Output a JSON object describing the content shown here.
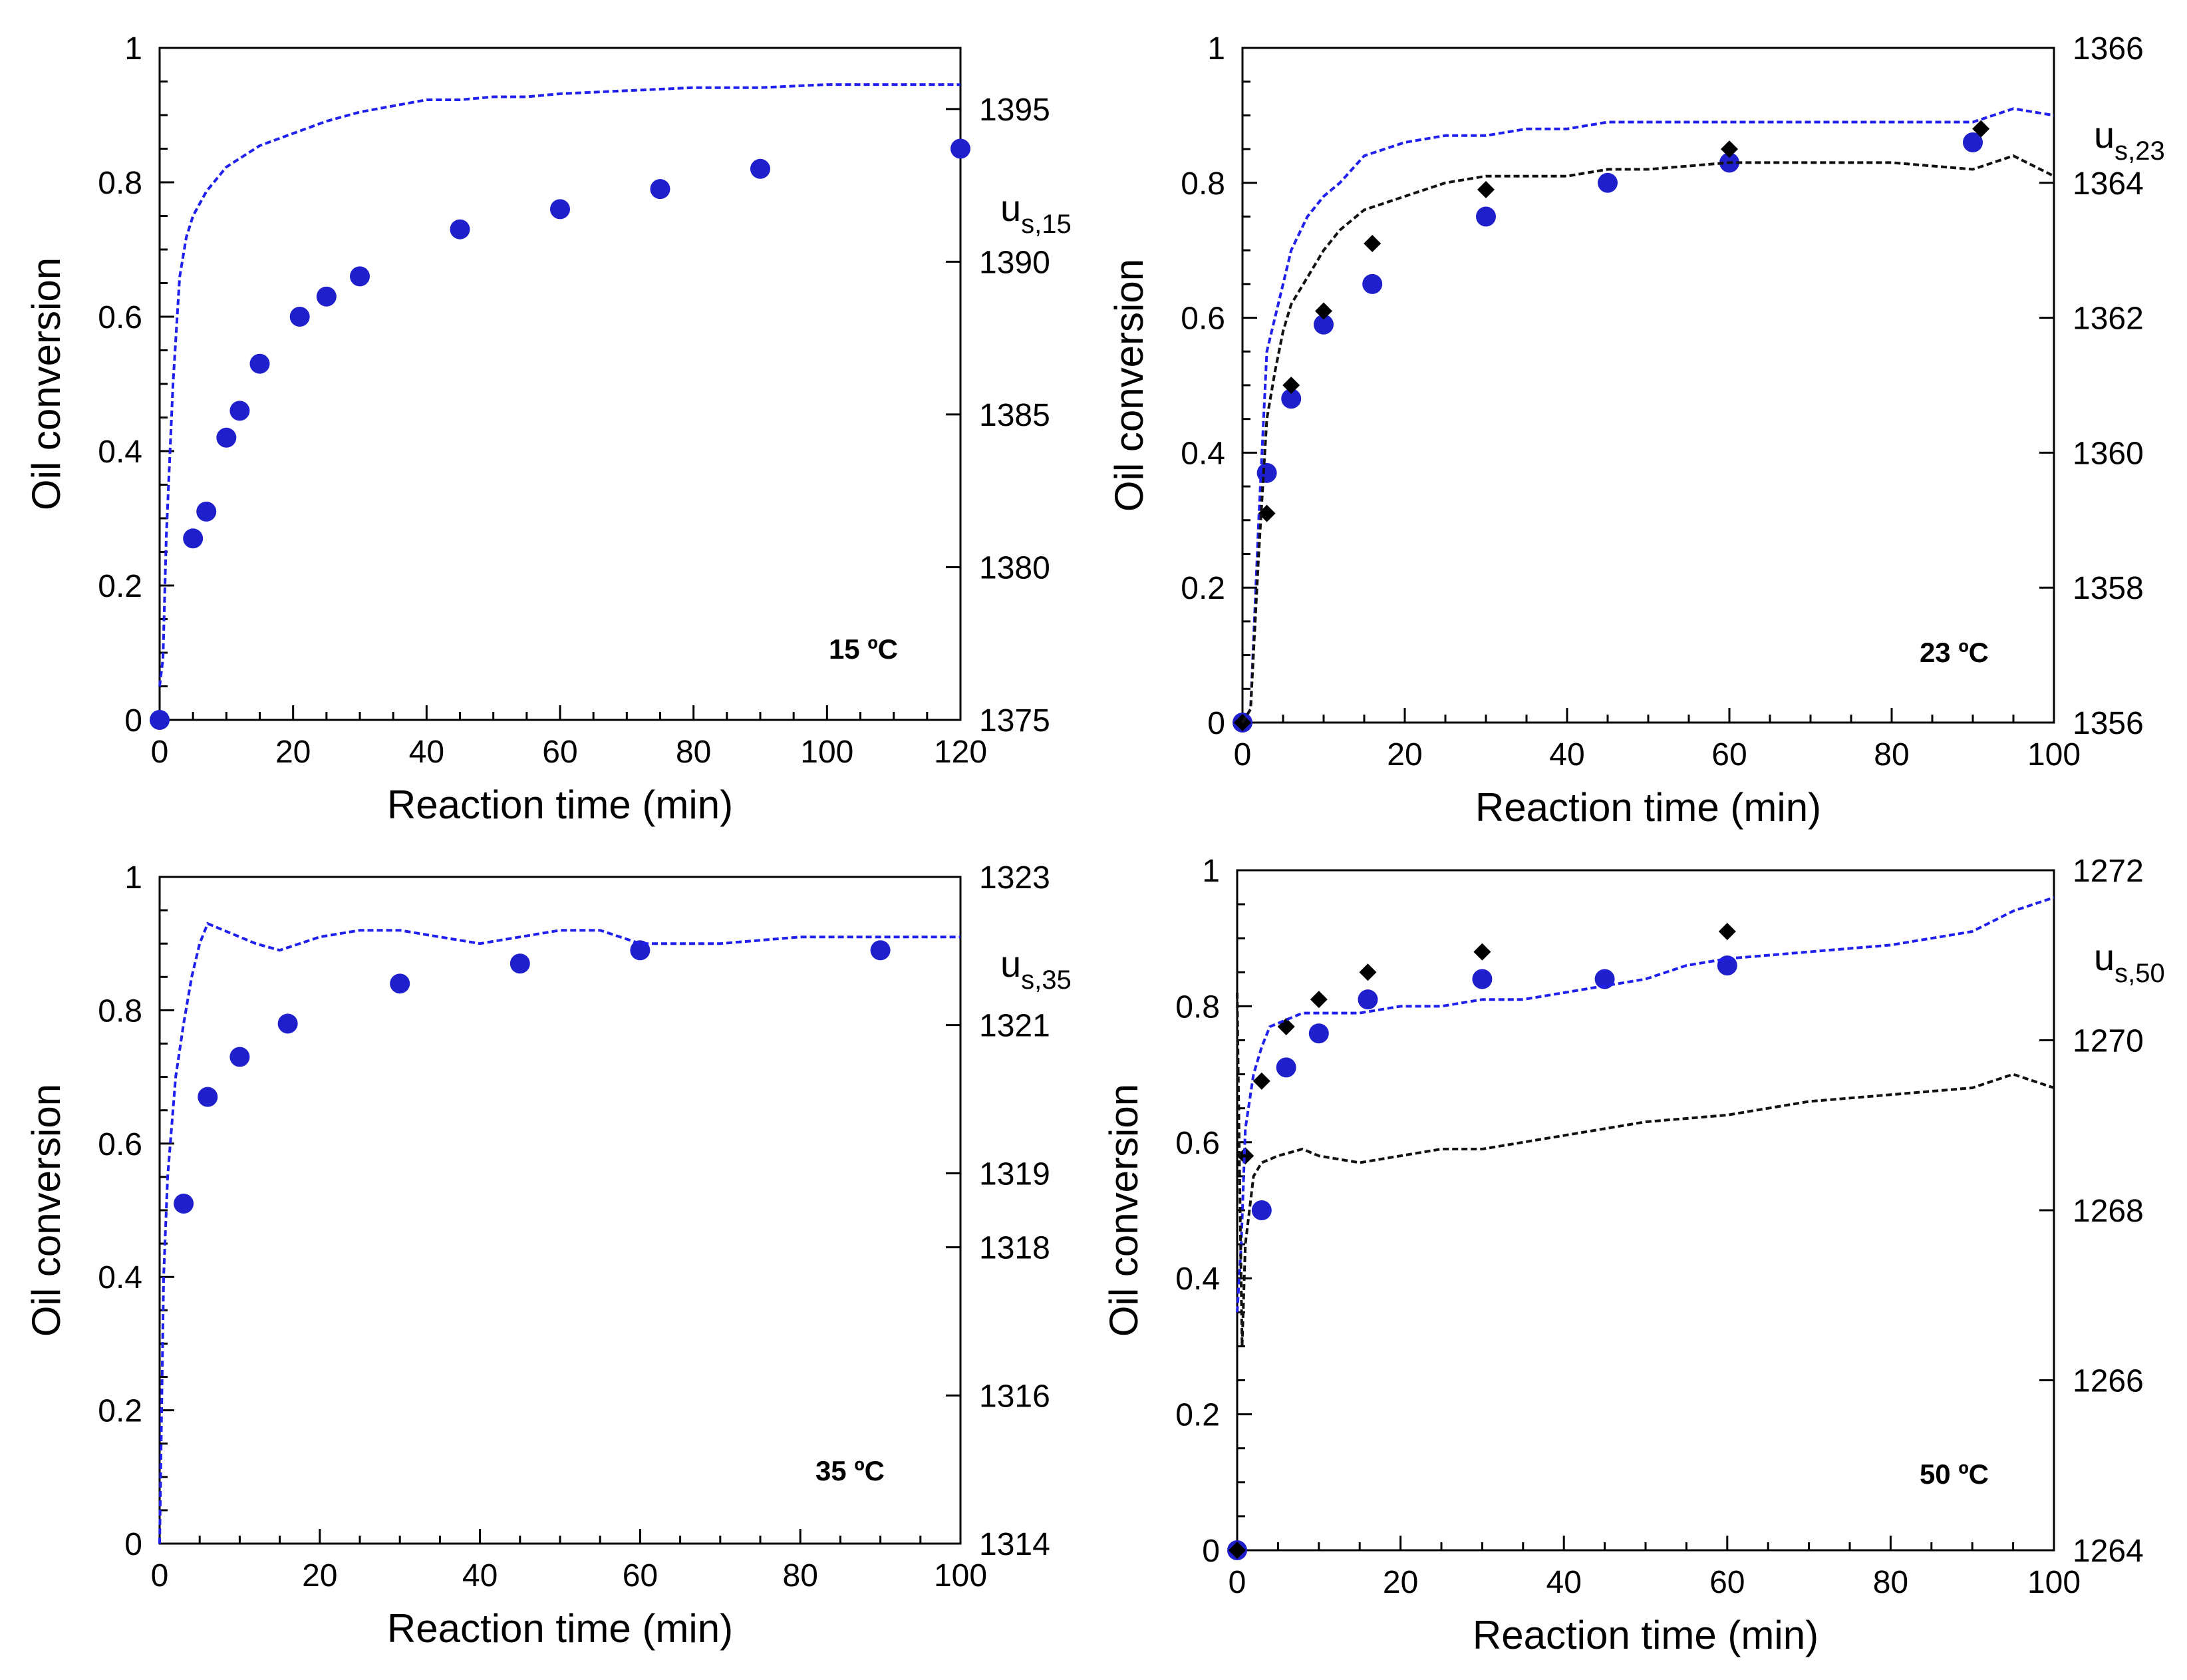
{
  "chart_data": [
    {
      "type": "scatter",
      "title": "15 ºC",
      "xlabel": "Reaction time (min)",
      "ylabel": "Oil conversion",
      "y2label_main": "u",
      "y2label_sub": "s,15",
      "xlim": [
        0,
        120
      ],
      "ylim": [
        0,
        1
      ],
      "y2lim": [
        1375,
        1397
      ],
      "xticks": [
        0,
        20,
        40,
        60,
        80,
        100,
        120
      ],
      "xtick_labels": [
        "0",
        "20",
        "40",
        "60",
        "80",
        "100",
        "120"
      ],
      "yticks": [
        0,
        0.2,
        0.4,
        0.6,
        0.8,
        1
      ],
      "ytick_labels": [
        "0",
        "0.2",
        "0.4",
        "0.6",
        "0.8",
        "1"
      ],
      "y2ticks": [
        1375,
        1380,
        1385,
        1390,
        1395
      ],
      "y2tick_labels": [
        "1375",
        "1380",
        "1385",
        "1390",
        "1395"
      ],
      "series": [
        {
          "name": "Oil conversion (circles)",
          "marker": "circle",
          "axis": "left",
          "color": "#1f1fcc",
          "x": [
            0,
            5,
            7,
            10,
            12,
            15,
            21,
            25,
            30,
            45,
            60,
            75,
            90,
            120
          ],
          "y": [
            0.0,
            0.27,
            0.31,
            0.42,
            0.46,
            0.53,
            0.6,
            0.63,
            0.66,
            0.73,
            0.76,
            0.79,
            0.82,
            0.85
          ]
        },
        {
          "name": "us,15 signal",
          "marker": "dashed-line",
          "axis": "right",
          "color": "#1f1fee",
          "x": [
            0,
            0.5,
            1,
            2,
            3,
            4,
            5,
            7,
            10,
            15,
            20,
            25,
            30,
            35,
            40,
            45,
            50,
            55,
            60,
            70,
            80,
            90,
            100,
            110,
            120
          ],
          "y": [
            1376.1,
            1377.0,
            1381.0,
            1386.0,
            1389.5,
            1390.8,
            1391.5,
            1392.3,
            1393.1,
            1393.8,
            1394.2,
            1394.6,
            1394.9,
            1395.1,
            1395.3,
            1395.3,
            1395.4,
            1395.4,
            1395.5,
            1395.6,
            1395.7,
            1395.7,
            1395.8,
            1395.8,
            1395.8
          ]
        }
      ]
    },
    {
      "type": "scatter",
      "title": "23 ºC",
      "xlabel": "Reaction time (min)",
      "ylabel": "Oil conversion",
      "y2label_main": "u",
      "y2label_sub": "s,23",
      "xlim": [
        0,
        100
      ],
      "ylim": [
        0,
        1
      ],
      "y2lim": [
        1356,
        1366
      ],
      "xticks": [
        0,
        20,
        40,
        60,
        80,
        100
      ],
      "xtick_labels": [
        "0",
        "20",
        "40",
        "60",
        "80",
        "100"
      ],
      "yticks": [
        0,
        0.2,
        0.4,
        0.6,
        0.8,
        1
      ],
      "ytick_labels": [
        "0",
        "0.2",
        "0.4",
        "0.6",
        "0.8",
        "1"
      ],
      "y2ticks": [
        1356,
        1358,
        1360,
        1362,
        1364,
        1366
      ],
      "y2tick_labels": [
        "1356",
        "1358",
        "1360",
        "1362",
        "1364",
        "1366"
      ],
      "series": [
        {
          "name": "Oil conversion (circles)",
          "marker": "circle",
          "axis": "left",
          "color": "#1f1fcc",
          "x": [
            0,
            3,
            6,
            10,
            16,
            30,
            45,
            60,
            90
          ],
          "y": [
            0.0,
            0.37,
            0.48,
            0.59,
            0.65,
            0.75,
            0.8,
            0.83,
            0.86
          ]
        },
        {
          "name": "Oil conversion (diamonds)",
          "marker": "diamond",
          "axis": "left",
          "color": "#000000",
          "x": [
            0,
            3,
            6,
            10,
            16,
            30,
            60,
            91
          ],
          "y": [
            0.0,
            0.31,
            0.5,
            0.61,
            0.71,
            0.79,
            0.85,
            0.88
          ]
        },
        {
          "name": "us,23 signal (blue)",
          "marker": "dashed-line",
          "axis": "left",
          "color": "#1f1fee",
          "x": [
            0,
            1,
            2,
            3,
            4,
            5,
            6,
            8,
            10,
            12,
            15,
            20,
            25,
            30,
            35,
            40,
            45,
            50,
            60,
            70,
            80,
            90,
            95,
            100
          ],
          "y": [
            0.0,
            0.02,
            0.3,
            0.55,
            0.6,
            0.65,
            0.7,
            0.75,
            0.78,
            0.8,
            0.84,
            0.86,
            0.87,
            0.87,
            0.88,
            0.88,
            0.89,
            0.89,
            0.89,
            0.89,
            0.89,
            0.89,
            0.91,
            0.9
          ]
        },
        {
          "name": "us,23 signal (black)",
          "marker": "dashed-line",
          "axis": "left",
          "color": "#111111",
          "x": [
            0,
            1,
            2,
            3,
            4,
            5,
            6,
            8,
            10,
            12,
            15,
            20,
            25,
            30,
            35,
            40,
            45,
            50,
            60,
            70,
            80,
            90,
            95,
            100
          ],
          "y": [
            0.0,
            0.02,
            0.25,
            0.45,
            0.52,
            0.58,
            0.62,
            0.66,
            0.7,
            0.73,
            0.76,
            0.78,
            0.8,
            0.81,
            0.81,
            0.81,
            0.82,
            0.82,
            0.83,
            0.83,
            0.83,
            0.82,
            0.84,
            0.81
          ]
        }
      ]
    },
    {
      "type": "scatter",
      "title": "35 ºC",
      "xlabel": "Reaction time (min)",
      "ylabel": "Oil conversion",
      "y2label_main": "u",
      "y2label_sub": "s,35",
      "xlim": [
        0,
        100
      ],
      "ylim": [
        0,
        1
      ],
      "y2lim": [
        1314,
        1323
      ],
      "xticks": [
        0,
        20,
        40,
        60,
        80,
        100
      ],
      "xtick_labels": [
        "0",
        "20",
        "40",
        "60",
        "80",
        "100"
      ],
      "yticks": [
        0,
        0.2,
        0.4,
        0.6,
        0.8,
        1
      ],
      "ytick_labels": [
        "0",
        "0.2",
        "0.4",
        "0.6",
        "0.8",
        "1"
      ],
      "y2ticks": [
        1314,
        1316,
        1318,
        1319,
        1321,
        1323
      ],
      "y2tick_labels": [
        "1314",
        "1316",
        "1318",
        "1319",
        "1321",
        "1323"
      ],
      "series": [
        {
          "name": "Oil conversion (circles)",
          "marker": "circle",
          "axis": "left",
          "color": "#1f1fcc",
          "x": [
            3,
            6,
            10,
            16,
            30,
            45,
            60,
            90
          ],
          "y": [
            0.51,
            0.67,
            0.73,
            0.78,
            0.84,
            0.87,
            0.89,
            0.89
          ]
        },
        {
          "name": "us,35 signal",
          "marker": "dashed-line",
          "axis": "left",
          "color": "#1f1fee",
          "x": [
            0,
            0.5,
            1,
            2,
            3,
            4,
            5,
            6,
            8,
            10,
            12,
            15,
            20,
            25,
            30,
            35,
            40,
            45,
            50,
            55,
            60,
            70,
            80,
            90,
            100
          ],
          "y": [
            0.0,
            0.4,
            0.55,
            0.7,
            0.78,
            0.85,
            0.9,
            0.93,
            0.92,
            0.91,
            0.9,
            0.89,
            0.91,
            0.92,
            0.92,
            0.91,
            0.9,
            0.91,
            0.92,
            0.92,
            0.9,
            0.9,
            0.91,
            0.91,
            0.91
          ]
        }
      ]
    },
    {
      "type": "scatter",
      "title": "50 ºC",
      "xlabel": "Reaction time (min)",
      "ylabel": "Oil conversion",
      "y2label_main": "u",
      "y2label_sub": "s,50",
      "xlim": [
        0,
        100
      ],
      "ylim": [
        0,
        1
      ],
      "y2lim": [
        1264,
        1272
      ],
      "xticks": [
        0,
        20,
        40,
        60,
        80,
        100
      ],
      "xtick_labels": [
        "0",
        "20",
        "40",
        "60",
        "80",
        "100"
      ],
      "yticks": [
        0,
        0.2,
        0.4,
        0.6,
        0.8,
        1
      ],
      "ytick_labels": [
        "0",
        "0.2",
        "0.4",
        "0.6",
        "0.8",
        "1"
      ],
      "y2ticks": [
        1264,
        1266,
        1268,
        1270,
        1272
      ],
      "y2tick_labels": [
        "1264",
        "1266",
        "1268",
        "1270",
        "1272"
      ],
      "series": [
        {
          "name": "Oil conversion (circles)",
          "marker": "circle",
          "axis": "left",
          "color": "#1f1fcc",
          "x": [
            0,
            3,
            6,
            10,
            16,
            30,
            45,
            60
          ],
          "y": [
            0.0,
            0.5,
            0.71,
            0.76,
            0.81,
            0.84,
            0.84,
            0.86
          ]
        },
        {
          "name": "Oil conversion (diamonds)",
          "marker": "diamond",
          "axis": "left",
          "color": "#000000",
          "x": [
            0,
            1,
            3,
            6,
            10,
            16,
            30,
            60
          ],
          "y": [
            0.0,
            0.58,
            0.69,
            0.77,
            0.81,
            0.85,
            0.88,
            0.91
          ]
        },
        {
          "name": "us,50 signal (blue)",
          "marker": "dashed-line",
          "axis": "left",
          "color": "#1f1fee",
          "x": [
            0,
            0.5,
            1,
            2,
            3,
            4,
            6,
            8,
            10,
            15,
            20,
            25,
            30,
            35,
            40,
            45,
            50,
            55,
            60,
            70,
            80,
            90,
            95,
            100
          ],
          "y": [
            0.35,
            0.45,
            0.62,
            0.7,
            0.74,
            0.77,
            0.78,
            0.79,
            0.79,
            0.79,
            0.8,
            0.8,
            0.81,
            0.81,
            0.82,
            0.83,
            0.84,
            0.86,
            0.87,
            0.88,
            0.89,
            0.91,
            0.94,
            0.96
          ]
        },
        {
          "name": "us,50 signal (black)",
          "marker": "dashed-line",
          "axis": "left",
          "color": "#111111",
          "x": [
            0,
            0.3,
            0.6,
            1,
            2,
            3,
            5,
            8,
            10,
            15,
            20,
            25,
            30,
            35,
            40,
            45,
            50,
            60,
            70,
            80,
            90,
            95,
            100
          ],
          "y": [
            0.82,
            0.55,
            0.3,
            0.45,
            0.55,
            0.57,
            0.58,
            0.59,
            0.58,
            0.57,
            0.58,
            0.59,
            0.59,
            0.6,
            0.61,
            0.62,
            0.63,
            0.64,
            0.66,
            0.67,
            0.68,
            0.7,
            0.68
          ]
        }
      ]
    }
  ]
}
